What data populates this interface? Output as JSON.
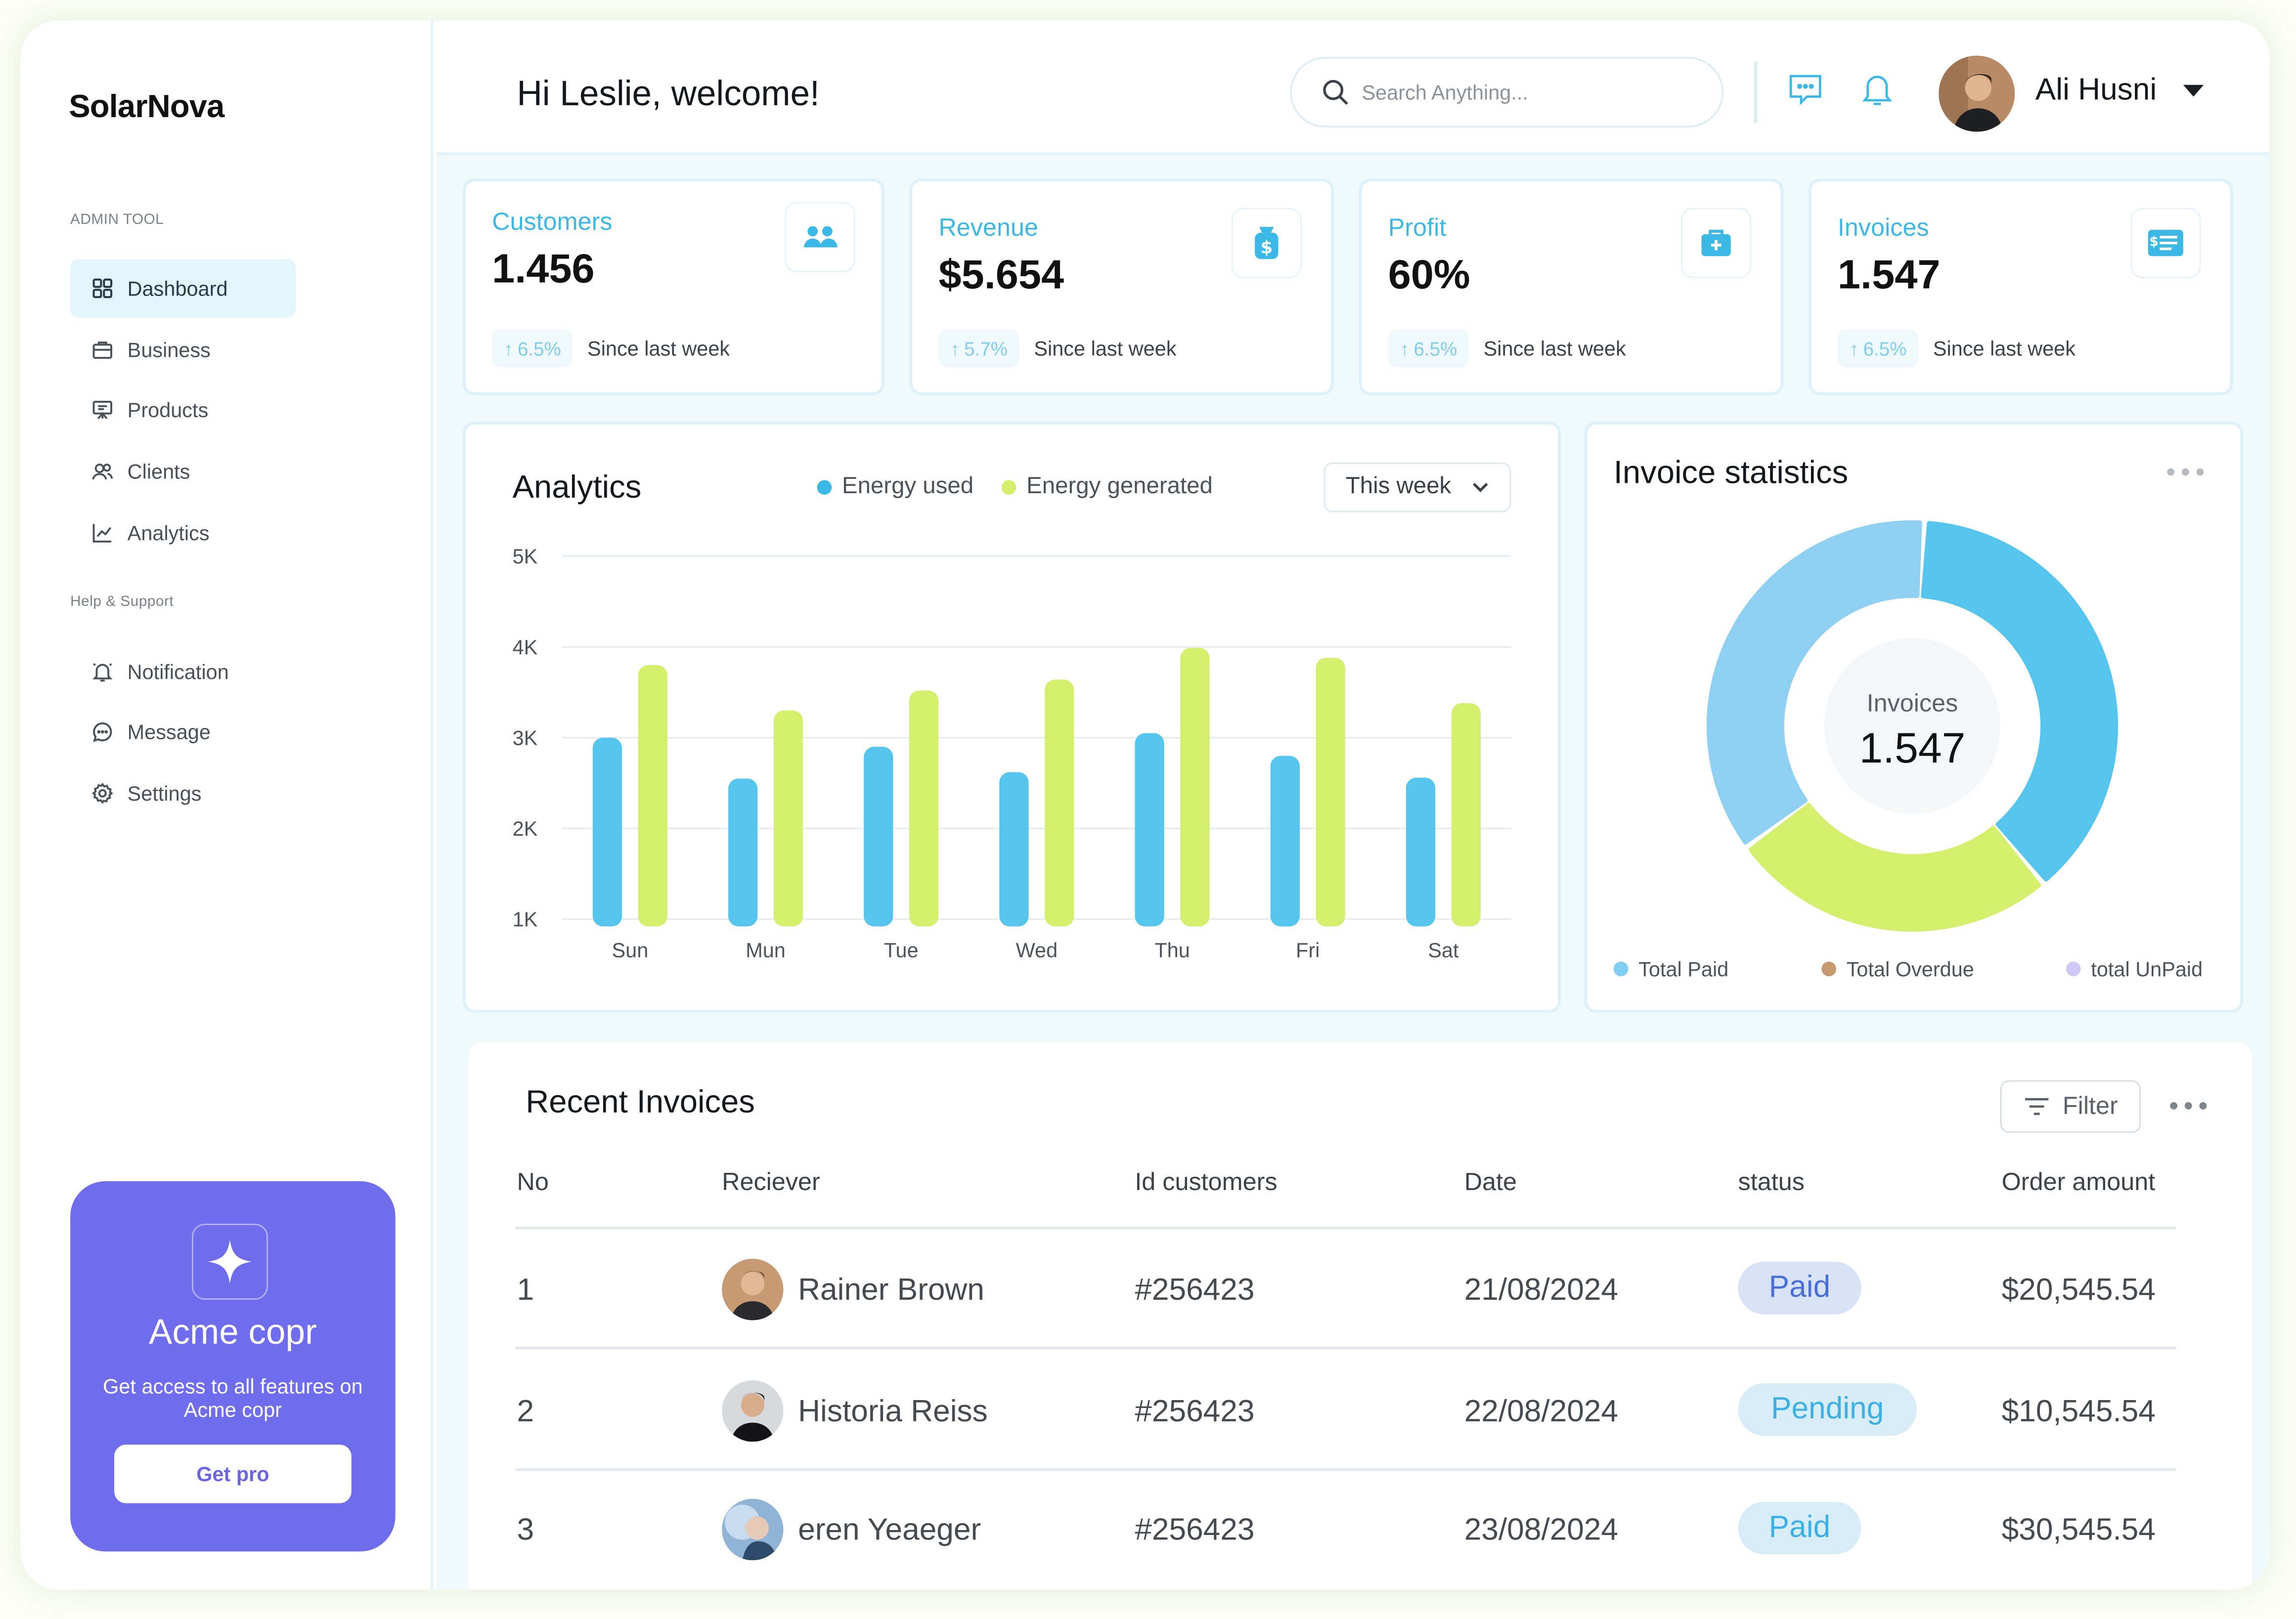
{
  "app": {
    "name": "SolarNova"
  },
  "sidebar": {
    "section1": "ADMIN TOOL",
    "section2": "Help & Support",
    "items": [
      {
        "label": "Dashboard",
        "icon": "grid-icon",
        "active": true
      },
      {
        "label": "Business",
        "icon": "briefcase-icon"
      },
      {
        "label": "Products",
        "icon": "easel-icon"
      },
      {
        "label": "Clients",
        "icon": "users-icon"
      },
      {
        "label": "Analytics",
        "icon": "chart-line-icon"
      }
    ],
    "support_items": [
      {
        "label": "Notification",
        "icon": "bell-icon"
      },
      {
        "label": "Message",
        "icon": "message-icon"
      },
      {
        "label": "Settings",
        "icon": "gear-icon"
      }
    ],
    "promo": {
      "title": "Acme copr",
      "description": "Get access to all features on Acme copr",
      "button": "Get pro",
      "color": "#6f6ded"
    }
  },
  "header": {
    "greeting": "Hi Leslie, welcome!",
    "search_placeholder": "Search Anything...",
    "user_name": "Ali Husni"
  },
  "stats": [
    {
      "label": "Customers",
      "value": "1.456",
      "trend": "6.5%",
      "since": "Since last week",
      "icon": "users-icon"
    },
    {
      "label": "Revenue",
      "value": "$5.654",
      "trend": "5.7%",
      "since": "Since last week",
      "icon": "money-bag-icon"
    },
    {
      "label": "Profit",
      "value": "60%",
      "trend": "6.5%",
      "since": "Since last week",
      "icon": "medical-case-icon"
    },
    {
      "label": "Invoices",
      "value": "1.547",
      "trend": "6.5%",
      "since": "Since last week",
      "icon": "invoice-icon"
    }
  ],
  "analytics": {
    "title": "Analytics",
    "period": "This week",
    "chart_data": {
      "type": "bar",
      "categories": [
        "Sun",
        "Mun",
        "Tue",
        "Wed",
        "Thu",
        "Fri",
        "Sat"
      ],
      "series": [
        {
          "name": "Energy used",
          "color": "#55c5ee",
          "values": [
            3000,
            2550,
            2900,
            2620,
            3050,
            2800,
            2560
          ]
        },
        {
          "name": "Energy generated",
          "color": "#d4ef6c",
          "values": [
            3800,
            3300,
            3520,
            3640,
            3990,
            3880,
            3380
          ]
        }
      ],
      "yticks": [
        "1K",
        "2K",
        "3K",
        "4K",
        "5K"
      ],
      "ylim": [
        1000,
        5000
      ],
      "grid": true,
      "legend": "top"
    }
  },
  "invoice_stats": {
    "title": "Invoice  statistics",
    "center_label": "Invoices",
    "center_value": "1.547",
    "chart_data": {
      "type": "pie",
      "segments": [
        {
          "name": "Total Paid",
          "value": 38,
          "color": "#55c5ee"
        },
        {
          "name": "Total Overdue",
          "value": 26,
          "color": "#d4ef6c"
        },
        {
          "name": "total UnPaid",
          "value": 36,
          "color": "#8ecff2"
        }
      ]
    },
    "legend": [
      {
        "label": "Total Paid",
        "color": "#7fcdf0"
      },
      {
        "label": "Total Overdue",
        "color": "#c69a6e"
      },
      {
        "label": "total UnPaid",
        "color": "#cfc8f7"
      }
    ]
  },
  "recent_invoices": {
    "title": "Recent Invoices",
    "filter_label": "Filter",
    "columns": [
      "No",
      "Reciever",
      "Id customers",
      "Date",
      "status",
      "Order amount"
    ],
    "rows": [
      {
        "no": "1",
        "receiver": "Rainer Brown",
        "id": "#256423",
        "date": "21/08/2024",
        "status": "Paid",
        "amount": "$20,545.54"
      },
      {
        "no": "2",
        "receiver": "Historia Reiss",
        "id": "#256423",
        "date": "22/08/2024",
        "status": "Pending",
        "amount": "$10,545.54"
      },
      {
        "no": "3",
        "receiver": "eren Yeaeger",
        "id": "#256423",
        "date": "23/08/2024",
        "status": "Paid",
        "amount": "$30,545.54"
      }
    ]
  }
}
